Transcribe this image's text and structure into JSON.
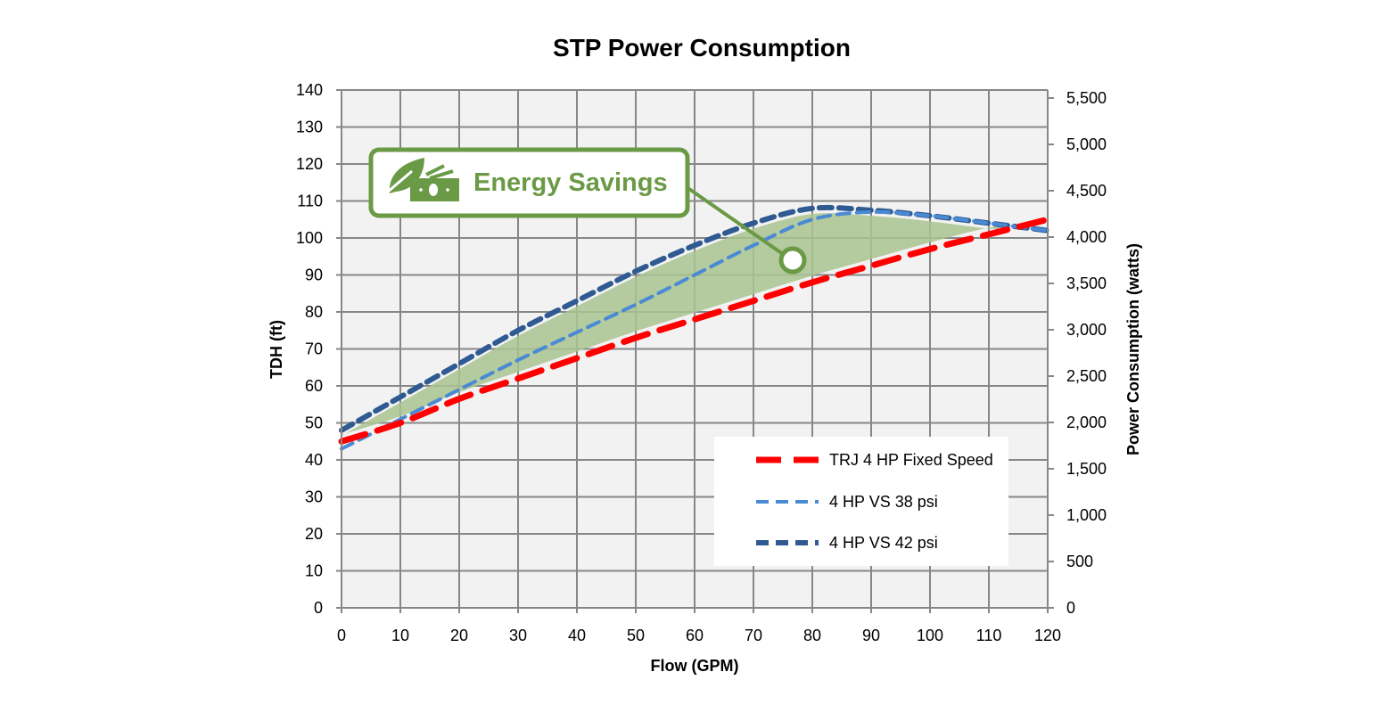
{
  "chart_data": {
    "type": "line",
    "title": "STP Power Consumption",
    "xlabel": "Flow (GPM)",
    "ylabel": "TDH (ft)",
    "y2label": "Power Consumption (watts)",
    "xlim": [
      0,
      120
    ],
    "ylim": [
      0,
      140
    ],
    "y2lim": [
      0,
      5500
    ],
    "xticks": [
      "0",
      "10",
      "20",
      "30",
      "40",
      "50",
      "60",
      "70",
      "80",
      "90",
      "100",
      "110",
      "120"
    ],
    "yticks": [
      "0",
      "10",
      "20",
      "30",
      "40",
      "50",
      "60",
      "70",
      "80",
      "90",
      "100",
      "110",
      "120",
      "130",
      "140"
    ],
    "y2ticks": [
      "0",
      "500",
      "1,000",
      "1,500",
      "2,000",
      "2,500",
      "3,000",
      "3,500",
      "4,000",
      "4,500",
      "5,000",
      "5,500"
    ],
    "grid": true,
    "legend_position": "bottom-right",
    "x": [
      0,
      10,
      20,
      30,
      40,
      50,
      60,
      70,
      80,
      90,
      100,
      110,
      120
    ],
    "series": [
      {
        "name": "TRJ 4 HP Fixed Speed",
        "color": "#ff0000",
        "values": [
          45,
          50,
          56.5,
          62,
          67.5,
          73,
          78,
          83,
          88,
          92.5,
          97,
          101,
          105
        ]
      },
      {
        "name": "4 HP VS 38 psi",
        "color": "#4a8ad4",
        "values": [
          43,
          51,
          59,
          67,
          74.5,
          82,
          90,
          98,
          105,
          107,
          106,
          104,
          102
        ]
      },
      {
        "name": "4 HP VS 42 psi",
        "color": "#2f5a92",
        "values": [
          48,
          57,
          66,
          75,
          83,
          91,
          98,
          104,
          108,
          107.5,
          106,
          104,
          102
        ]
      }
    ],
    "annotation": {
      "text": "Energy Savings",
      "icon": "leaf-money-icon",
      "color": "#6a9a45",
      "shade_color": "#a9c391"
    }
  }
}
